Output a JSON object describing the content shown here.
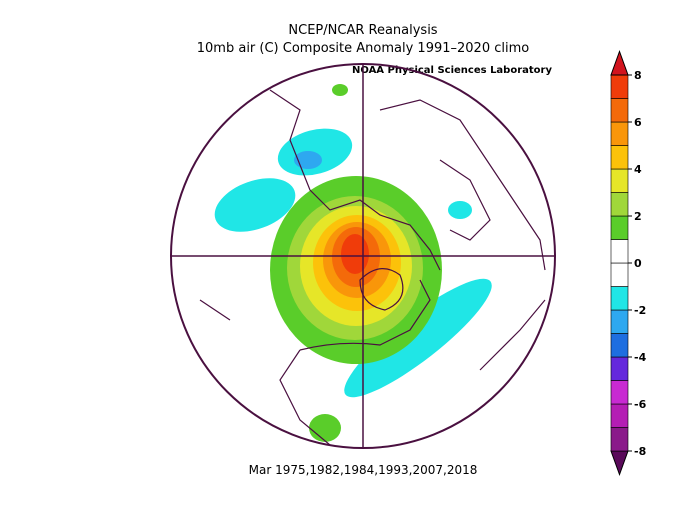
{
  "header": {
    "title": "NCEP/NCAR Reanalysis",
    "subtitle": "10mb air (C) Composite Anomaly 1991–2020 climo",
    "credit": "NOAA Physical Sciences Laboratory"
  },
  "footer": "Mar 1975,1982,1984,1993,2007,2018",
  "colorbar": {
    "ticks": [
      8,
      6,
      4,
      2,
      0,
      -2,
      -4,
      -6,
      -8
    ],
    "colors": [
      "#5a0a5a",
      "#8a1a8a",
      "#b41eb4",
      "#c82ad2",
      "#6428dc",
      "#1e6ee0",
      "#2ea8f0",
      "#20e6e6",
      "#ffffff",
      "#ffffff",
      "#5acd2a",
      "#a0d73a",
      "#e6e628",
      "#fcc20a",
      "#f9960a",
      "#f46a0a",
      "#f03c0a",
      "#d2141e"
    ]
  }
}
